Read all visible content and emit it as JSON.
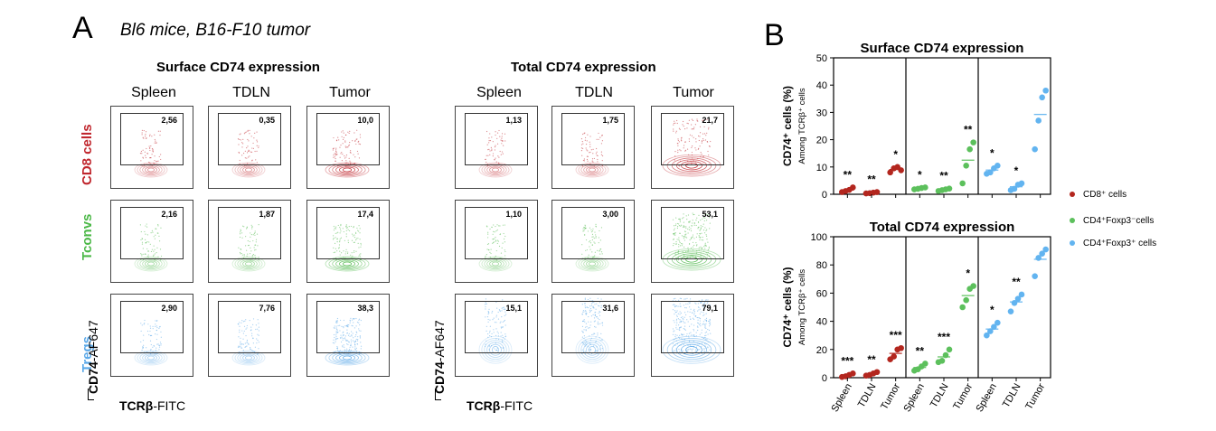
{
  "panel_a": {
    "letter": "A",
    "subtitle": "Bl6 mice, B16-F10 tumor",
    "groups": [
      {
        "title": "Surface CD74 expression",
        "percentages": [
          [
            "2,56",
            "0,35",
            "10,0"
          ],
          [
            "2,16",
            "1,87",
            "17,4"
          ],
          [
            "2,90",
            "7,76",
            "38,3"
          ]
        ]
      },
      {
        "title": "Total CD74 expression",
        "percentages": [
          [
            "1,13",
            "1,75",
            "21,7"
          ],
          [
            "1,10",
            "3,00",
            "53,1"
          ],
          [
            "15,1",
            "31,6",
            "79,1"
          ]
        ]
      }
    ],
    "columns": [
      "Spleen",
      "TDLN",
      "Tumor"
    ],
    "rows": [
      {
        "label": "CD8 cells",
        "color": "#c0262d"
      },
      {
        "label": "Tconvs",
        "color": "#4cb848"
      },
      {
        "label": "Tregs",
        "color": "#5aa8e8"
      }
    ],
    "y_axis_bold": "CD74",
    "y_axis_rest": "-AF647",
    "x_axis_bold": "TCRβ",
    "x_axis_rest": "-FITC"
  },
  "panel_b": {
    "letter": "B",
    "ylabel_main": "CD74⁺ cells (%)",
    "ylabel_sub": "Among TCRβ⁺ cells",
    "legend": [
      {
        "label": "CD8⁺ cells",
        "color": "#b3261e"
      },
      {
        "label": "CD4⁺Foxp3⁻cells",
        "color": "#5cc05c"
      },
      {
        "label": "CD4⁺Foxp3⁺ cells",
        "color": "#62b4f0"
      }
    ],
    "x_tick_labels": [
      "Spleen",
      "TDLN",
      "Tumor",
      "Spleen",
      "TDLN",
      "Tumor",
      "Spleen",
      "TDLN",
      "Tumor"
    ]
  },
  "chart_data": [
    {
      "type": "scatter",
      "title": "Surface CD74 expression",
      "ylabel": "CD74⁺ cells (%)",
      "ylim": [
        0,
        50
      ],
      "yticks": [
        0,
        10,
        20,
        30,
        40,
        50
      ],
      "categories": [
        "Spleen",
        "TDLN",
        "Tumor",
        "Spleen",
        "TDLN",
        "Tumor",
        "Spleen",
        "TDLN",
        "Tumor"
      ],
      "series": [
        {
          "name": "CD8⁺ cells",
          "color": "#b3261e",
          "groups": [
            [
              0.8,
              1.2,
              1.6,
              2.5
            ],
            [
              0.3,
              0.4,
              0.6,
              0.8
            ],
            [
              8.0,
              9.5,
              10.0,
              8.8
            ]
          ],
          "significance": [
            "**",
            "**",
            "*"
          ]
        },
        {
          "name": "CD4⁺Foxp3⁻cells",
          "color": "#5cc05c",
          "groups": [
            [
              1.8,
              2.0,
              2.3,
              2.5
            ],
            [
              1.2,
              1.5,
              1.8,
              2.1
            ],
            [
              4.0,
              10.5,
              16.5,
              19.0
            ]
          ],
          "significance": [
            "*",
            "**",
            "**"
          ]
        },
        {
          "name": "CD4⁺Foxp3⁺ cells",
          "color": "#62b4f0",
          "groups": [
            [
              7.5,
              8.0,
              9.5,
              10.5
            ],
            [
              1.5,
              2.0,
              3.5,
              4.0
            ],
            [
              16.5,
              27.0,
              35.5,
              38.0
            ]
          ],
          "significance": [
            "*",
            "*",
            ""
          ]
        }
      ]
    },
    {
      "type": "scatter",
      "title": "Total CD74 expression",
      "ylabel": "CD74⁺ cells (%)",
      "ylim": [
        0,
        100
      ],
      "yticks": [
        0,
        20,
        40,
        60,
        80,
        100
      ],
      "categories": [
        "Spleen",
        "TDLN",
        "Tumor",
        "Spleen",
        "TDLN",
        "Tumor",
        "Spleen",
        "TDLN",
        "Tumor"
      ],
      "series": [
        {
          "name": "CD8⁺ cells",
          "color": "#b3261e",
          "groups": [
            [
              0.5,
              1.0,
              2.0,
              3.0
            ],
            [
              1.5,
              2.0,
              3.0,
              4.0
            ],
            [
              13.0,
              15.0,
              20.0,
              21.0
            ]
          ],
          "significance": [
            "***",
            "**",
            "***"
          ]
        },
        {
          "name": "CD4⁺Foxp3⁻cells",
          "color": "#5cc05c",
          "groups": [
            [
              5.0,
              6.0,
              8.0,
              10.0
            ],
            [
              11.0,
              12.0,
              16.0,
              20.0
            ],
            [
              50.0,
              55.0,
              63.0,
              65.0
            ]
          ],
          "significance": [
            "**",
            "***",
            "*"
          ]
        },
        {
          "name": "CD4⁺Foxp3⁺ cells",
          "color": "#62b4f0",
          "groups": [
            [
              30.0,
              33.0,
              36.0,
              39.0
            ],
            [
              47.0,
              53.0,
              56.0,
              59.0
            ],
            [
              72.0,
              85.0,
              88.0,
              91.0
            ]
          ],
          "significance": [
            "*",
            "**",
            ""
          ]
        }
      ]
    }
  ]
}
